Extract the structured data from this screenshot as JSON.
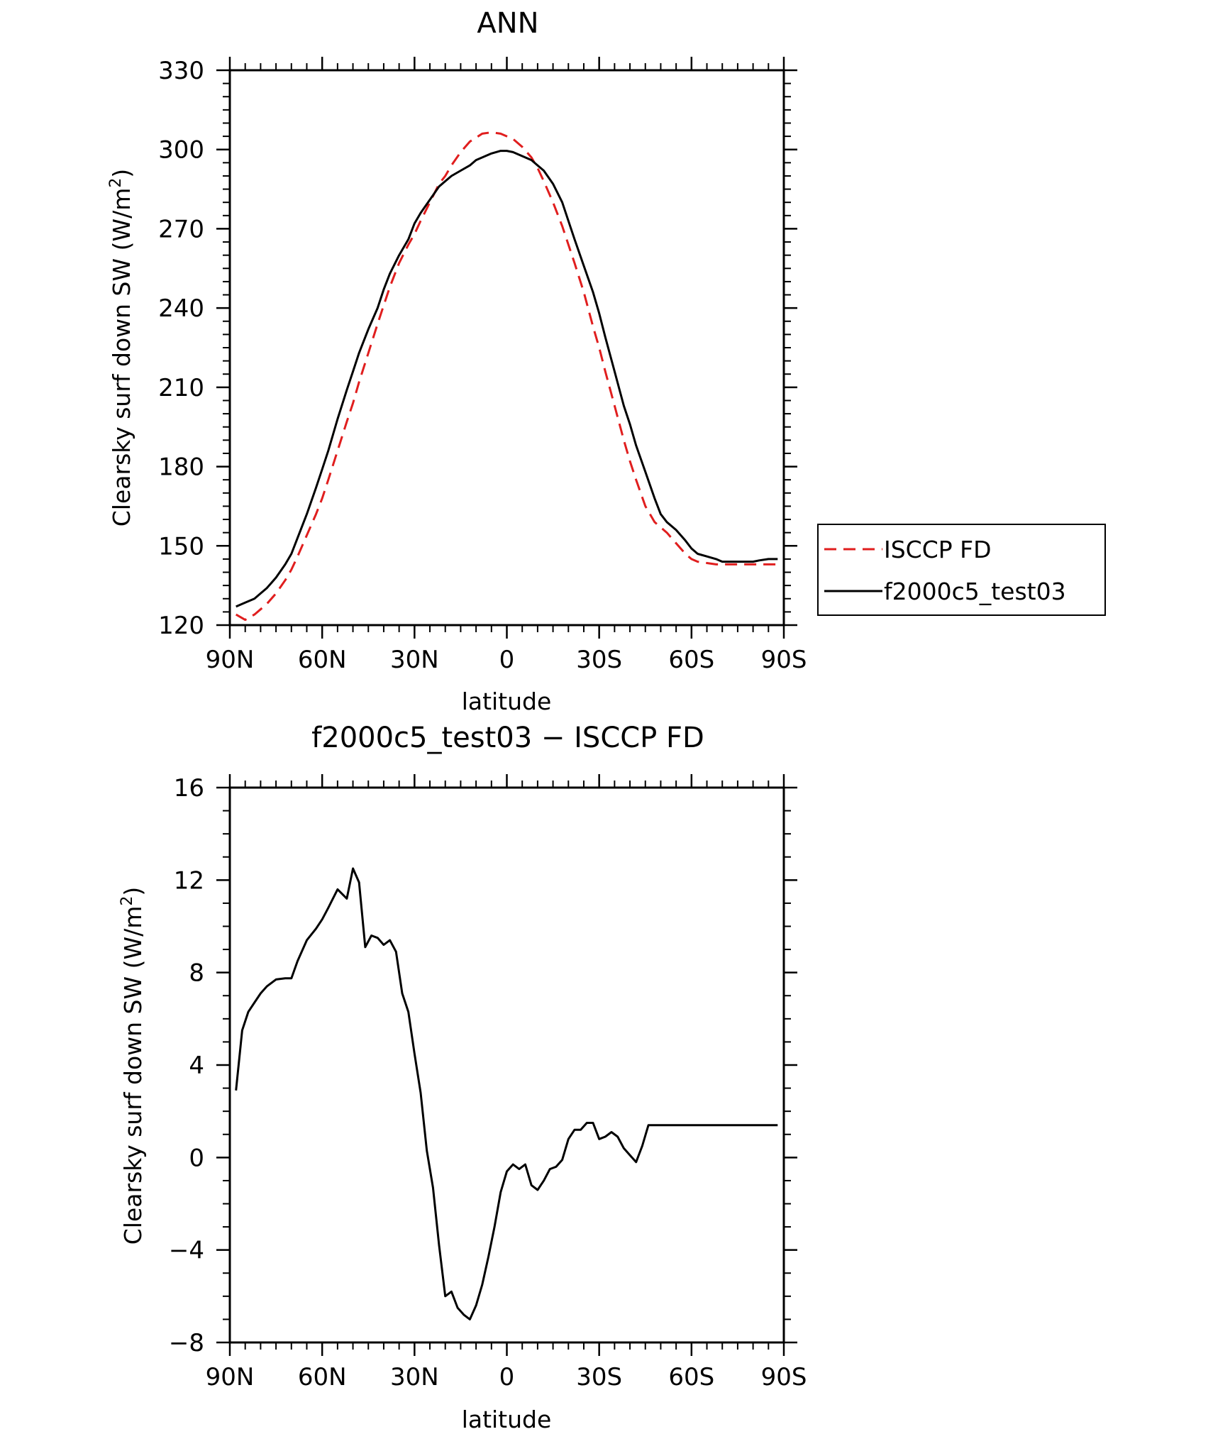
{
  "chart_data": [
    {
      "type": "line",
      "title": "ANN",
      "xlabel": "latitude",
      "ylabel": "Clearsky surf down SW (W/m",
      "ylabel_sup": "2",
      "ylabel_close": ")",
      "xlim": [
        90,
        -90
      ],
      "ylim": [
        120,
        330
      ],
      "yticks": [
        120,
        150,
        180,
        210,
        240,
        270,
        300,
        330
      ],
      "xticks": [
        {
          "value": 90,
          "label": "90N"
        },
        {
          "value": 60,
          "label": "60N"
        },
        {
          "value": 30,
          "label": "30N"
        },
        {
          "value": 0,
          "label": "0"
        },
        {
          "value": -30,
          "label": "30S"
        },
        {
          "value": -60,
          "label": "60S"
        },
        {
          "value": -90,
          "label": "90S"
        }
      ],
      "legend": {
        "position": "right"
      },
      "series": [
        {
          "name": "ISCCP FD",
          "color": "#e01e1e",
          "dash": "dashed",
          "x": [
            88,
            85,
            82,
            80,
            78,
            75,
            72,
            70,
            68,
            65,
            62,
            60,
            58,
            55,
            52,
            50,
            48,
            45,
            42,
            40,
            38,
            35,
            32,
            30,
            28,
            25,
            22,
            20,
            18,
            15,
            12,
            10,
            8,
            5,
            2,
            0,
            -2,
            -5,
            -8,
            -10,
            -12,
            -15,
            -18,
            -20,
            -22,
            -25,
            -28,
            -30,
            -32,
            -35,
            -38,
            -40,
            -42,
            -45,
            -48,
            -50,
            -52,
            -55,
            -58,
            -60,
            -62,
            -65,
            -68,
            -70,
            -72,
            -75,
            -78,
            -80,
            -82,
            -85,
            -88
          ],
          "y": [
            124,
            122,
            124,
            126,
            128,
            132,
            137,
            141,
            146,
            154,
            162,
            168,
            175,
            186,
            197,
            204,
            212,
            223,
            234,
            241,
            248,
            257,
            264,
            268,
            273,
            280,
            287,
            290,
            294,
            299,
            303,
            304.5,
            306,
            306.5,
            306,
            305,
            304,
            301,
            297,
            293,
            288,
            280,
            271,
            264,
            257,
            246,
            233,
            225,
            216,
            203,
            190,
            182,
            175,
            165,
            159,
            157,
            155,
            151,
            147,
            145,
            144,
            143.5,
            143,
            143,
            143,
            143,
            143,
            143,
            143,
            143,
            143
          ]
        },
        {
          "name": "f2000c5_test03",
          "color": "#000000",
          "dash": "solid",
          "x": [
            88,
            85,
            82,
            80,
            78,
            75,
            72,
            70,
            68,
            65,
            62,
            60,
            58,
            55,
            52,
            50,
            48,
            45,
            42,
            40,
            38,
            35,
            32,
            30,
            28,
            25,
            22,
            20,
            18,
            15,
            12,
            10,
            8,
            5,
            2,
            0,
            -2,
            -5,
            -8,
            -10,
            -12,
            -15,
            -18,
            -20,
            -22,
            -25,
            -28,
            -30,
            -32,
            -35,
            -38,
            -40,
            -42,
            -45,
            -48,
            -50,
            -52,
            -55,
            -58,
            -60,
            -62,
            -65,
            -68,
            -70,
            -72,
            -75,
            -78,
            -80,
            -82,
            -85,
            -88
          ],
          "y": [
            127,
            128.5,
            130,
            132,
            134,
            138,
            143,
            147,
            153,
            162,
            172,
            179,
            186,
            198,
            209,
            216,
            223,
            232,
            240,
            247,
            253,
            260,
            266,
            272,
            276,
            281,
            286,
            288,
            290,
            292,
            294,
            296,
            297,
            298.5,
            299.5,
            299.5,
            299,
            297.5,
            296,
            294,
            292,
            287,
            280,
            273,
            266,
            256,
            246,
            238,
            229,
            216,
            203,
            196,
            188,
            178,
            168,
            162,
            159,
            156,
            152,
            149,
            147,
            146,
            145,
            144,
            144,
            144,
            144,
            144,
            144.5,
            145,
            145
          ]
        }
      ]
    },
    {
      "type": "line",
      "title": "f2000c5_test03 − ISCCP FD",
      "xlabel": "latitude",
      "ylabel": "Clearsky surf down SW (W/m",
      "ylabel_sup": "2",
      "ylabel_close": ")",
      "xlim": [
        90,
        -90
      ],
      "ylim": [
        -8,
        16
      ],
      "yticks": [
        -8,
        -4,
        0,
        4,
        8,
        12,
        16
      ],
      "ytick_labels": [
        "−8",
        "−4",
        "0",
        "4",
        "8",
        "12",
        "16"
      ],
      "xticks": [
        {
          "value": 90,
          "label": "90N"
        },
        {
          "value": 60,
          "label": "60N"
        },
        {
          "value": 30,
          "label": "30N"
        },
        {
          "value": 0,
          "label": "0"
        },
        {
          "value": -30,
          "label": "30S"
        },
        {
          "value": -60,
          "label": "60S"
        },
        {
          "value": -90,
          "label": "90S"
        }
      ],
      "series": [
        {
          "name": "f2000c5_test03 - ISCCP FD",
          "color": "#000000",
          "dash": "solid",
          "x": [
            88,
            86,
            84,
            82,
            80,
            78,
            75,
            72,
            70,
            68,
            65,
            62,
            60,
            58,
            55,
            52,
            50,
            48,
            46,
            44,
            42,
            40,
            38,
            36,
            34,
            32,
            30,
            28,
            26,
            24,
            22,
            20,
            18,
            16,
            14,
            12,
            10,
            8,
            6,
            4,
            2,
            0,
            -2,
            -4,
            -6,
            -8,
            -10,
            -12,
            -14,
            -16,
            -18,
            -20,
            -22,
            -24,
            -26,
            -28,
            -30,
            -32,
            -34,
            -36,
            -38,
            -40,
            -42,
            -44,
            -46,
            -48,
            -50,
            -52,
            -54,
            -56,
            -58,
            -60,
            -62,
            -64,
            -66,
            -68,
            -70,
            -72,
            -74,
            -76,
            -78,
            -80,
            -82,
            -84,
            -86,
            -88
          ],
          "y": [
            2.9,
            5.5,
            6.3,
            6.7,
            7.1,
            7.4,
            7.7,
            7.75,
            7.75,
            8.5,
            9.4,
            9.9,
            10.3,
            10.8,
            11.6,
            11.2,
            12.5,
            11.9,
            9.1,
            9.6,
            9.5,
            9.2,
            9.4,
            8.9,
            7.1,
            6.3,
            4.5,
            2.8,
            0.3,
            -1.3,
            -3.8,
            -6.0,
            -5.8,
            -6.5,
            -6.8,
            -7.0,
            -6.4,
            -5.5,
            -4.3,
            -3.0,
            -1.5,
            -0.6,
            -0.3,
            -0.5,
            -0.3,
            -1.2,
            -1.4,
            -1.0,
            -0.5,
            -0.4,
            -0.1,
            0.8,
            1.2,
            1.2,
            1.5,
            1.5,
            0.8,
            0.9,
            1.1,
            0.9,
            0.4,
            0.1,
            -0.2,
            0.5,
            1.4,
            1.4,
            1.4,
            1.4,
            1.4,
            1.4,
            1.4,
            1.4,
            1.4,
            1.4,
            1.4,
            1.4,
            1.4,
            1.4,
            1.4,
            1.4,
            1.4,
            1.4,
            1.4,
            1.4,
            1.4,
            1.4
          ]
        }
      ]
    }
  ]
}
